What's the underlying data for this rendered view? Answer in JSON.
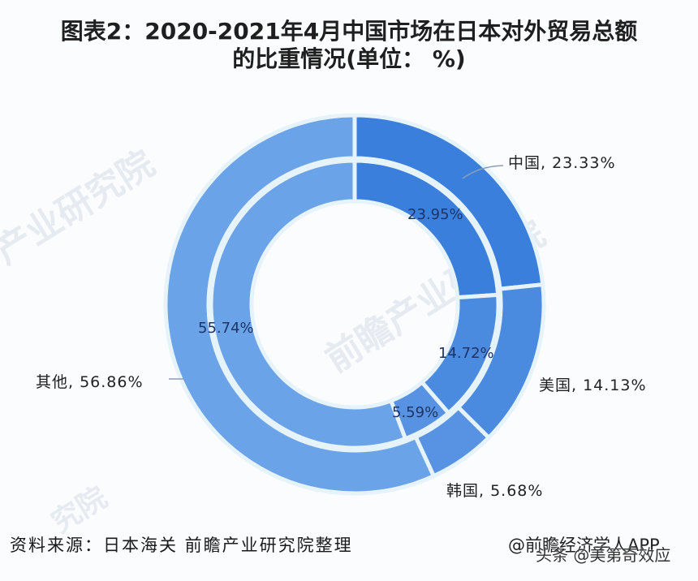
{
  "title": {
    "line1": "图表2：2020-2021年4月中国市场在日本对外贸易总额",
    "line2": "的比重情况(单位： %)"
  },
  "footer": {
    "source": "资料来源：日本海关 前瞻产业研究院整理",
    "credit": "@前瞻经济学人APP",
    "overlay": "头条 @美第奇效应"
  },
  "watermarks": [
    "产业研究院",
    "前瞻产业研究院",
    "究院"
  ],
  "chart_data": {
    "type": "pie",
    "subtype": "nested-donut",
    "title": "图表2：2020-2021年4月中国市场在日本对外贸易总额的比重情况(单位： %)",
    "categories": [
      "中国",
      "美国",
      "韩国",
      "其他"
    ],
    "series": [
      {
        "name": "outer ring",
        "values": [
          23.33,
          14.13,
          5.68,
          56.86
        ],
        "labels": [
          "中国, 23.33%",
          "美国, 14.13%",
          "韩国, 5.68%",
          "其他, 56.86%"
        ]
      },
      {
        "name": "inner ring",
        "values": [
          23.95,
          14.72,
          5.59,
          55.74
        ],
        "labels": [
          "23.95%",
          "14.72%",
          "5.59%",
          "55.74%"
        ]
      }
    ],
    "colors": [
      "#3a7fdc",
      "#4a8be0",
      "#5793e2",
      "#6aa3e8"
    ],
    "separator_color": "#e6f3fb",
    "start_angle_deg": 0,
    "direction": "clockwise",
    "legend": "none",
    "source": "资料来源：日本海关 前瞻产业研究院整理"
  }
}
